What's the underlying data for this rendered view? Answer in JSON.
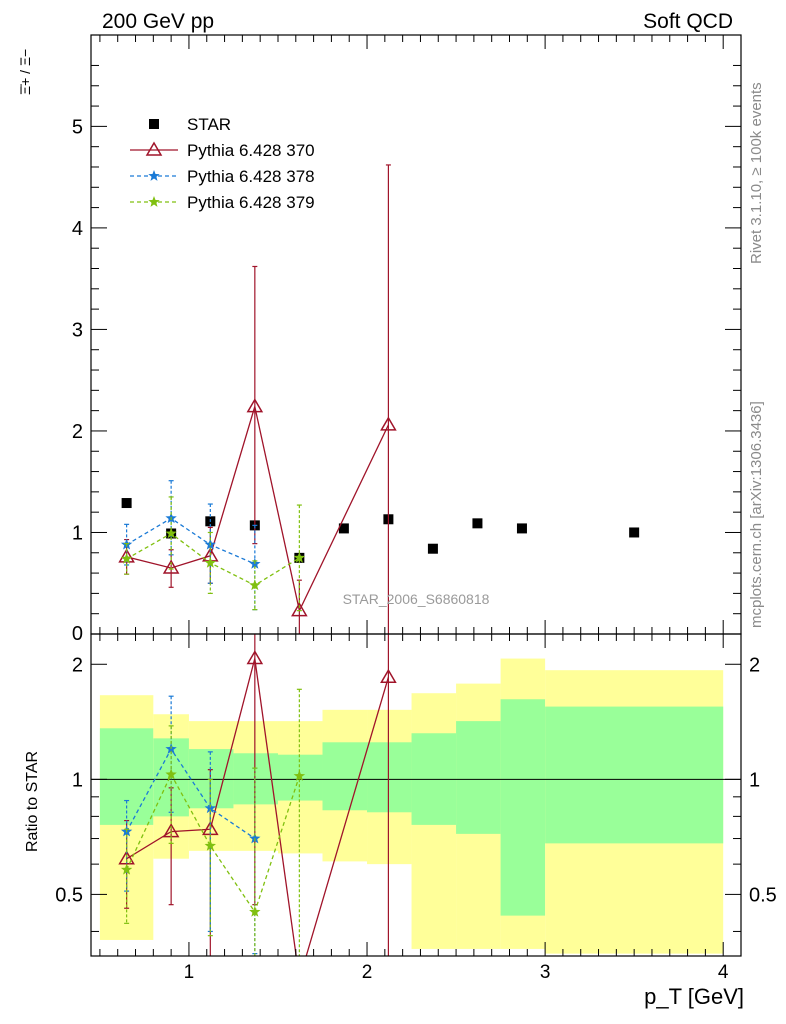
{
  "header": {
    "left": "200 GeV pp",
    "right": "Soft QCD"
  },
  "side_labels": {
    "rivet": "Rivet 3.1.10, ≥ 100k events",
    "mcplots": "mcplots.cern.ch [arXiv:1306.3436]"
  },
  "watermark": "STAR_2006_S6860818",
  "colors": {
    "star": "#000000",
    "py370": "#a0142a",
    "py378": "#1a7ad6",
    "py379": "#80c010",
    "band_inner": "#99ff99",
    "band_outer": "#ffff99"
  },
  "chart_data": [
    {
      "type": "scatter",
      "ylabel": "Ξ̄+ / Ξ−",
      "xlabel": "",
      "xlim": [
        0.45,
        4.1
      ],
      "ylim": [
        0,
        5.9
      ],
      "yticks": [
        1,
        2,
        3,
        4,
        5
      ],
      "ytick_labels": [
        "1",
        "2",
        "3",
        "4",
        "5"
      ],
      "bottom_tick_label": "0",
      "legend_position": "top-left",
      "series": [
        {
          "name": "STAR",
          "key": "star",
          "marker": "square",
          "x": [
            0.65,
            0.9,
            1.12,
            1.37,
            1.62,
            1.87,
            2.12,
            2.37,
            2.62,
            2.87,
            3.5
          ],
          "y": [
            1.29,
            0.99,
            1.11,
            1.07,
            0.75,
            1.04,
            1.13,
            0.84,
            1.09,
            1.04,
            1.0
          ]
        },
        {
          "name": "Pythia 6.428 370",
          "key": "py370",
          "marker": "triangle",
          "dash": "none",
          "x": [
            0.65,
            0.9,
            1.12,
            1.37,
            1.62,
            2.12
          ],
          "y": [
            0.76,
            0.65,
            0.77,
            2.24,
            0.23,
            2.06
          ],
          "err_low": [
            0.17,
            0.19,
            0.27,
            1.35,
            0.4,
            2.1
          ],
          "err_high": [
            0.17,
            0.18,
            0.28,
            1.38,
            0.3,
            2.56
          ]
        },
        {
          "name": "Pythia 6.428 378",
          "key": "py378",
          "marker": "star",
          "dash": "4,3",
          "x": [
            0.65,
            0.9,
            1.12,
            1.37
          ],
          "y": [
            0.88,
            1.14,
            0.88,
            0.69
          ],
          "err_low": [
            0.2,
            0.36,
            0.38,
            0.45
          ],
          "err_high": [
            0.2,
            0.37,
            0.4,
            0.38
          ]
        },
        {
          "name": "Pythia 6.428 379",
          "key": "py379",
          "marker": "star",
          "dash": "4,3",
          "x": [
            0.65,
            0.9,
            1.12,
            1.37,
            1.62
          ],
          "y": [
            0.74,
            0.99,
            0.7,
            0.48,
            0.75
          ],
          "err_low": [
            0.15,
            0.35,
            0.3,
            0.24,
            0.52
          ],
          "err_high": [
            0.15,
            0.36,
            0.3,
            0.24,
            0.52
          ]
        }
      ]
    },
    {
      "type": "line",
      "ylabel": "Ratio to STAR",
      "xlabel": "p_T [GeV]",
      "xlim": [
        0.45,
        4.1
      ],
      "ylim": [
        0.345,
        2.4
      ],
      "log_y": true,
      "yticks": [
        0.5,
        1,
        2
      ],
      "ytick_labels": [
        "0.5",
        "1",
        "2"
      ],
      "xticks": [
        1,
        2,
        3,
        4
      ],
      "xtick_labels": [
        "1",
        "2",
        "3",
        "4"
      ],
      "reference_line": 1,
      "bands": [
        {
          "x0": 0.5,
          "x1": 0.8,
          "inner": [
            0.76,
            1.36
          ],
          "outer": [
            0.38,
            1.66
          ]
        },
        {
          "x0": 0.8,
          "x1": 1.0,
          "inner": [
            0.8,
            1.28
          ],
          "outer": [
            0.62,
            1.48
          ]
        },
        {
          "x0": 1.0,
          "x1": 1.25,
          "inner": [
            0.84,
            1.2
          ],
          "outer": [
            0.65,
            1.42
          ]
        },
        {
          "x0": 1.25,
          "x1": 1.5,
          "inner": [
            0.86,
            1.17
          ],
          "outer": [
            0.65,
            1.42
          ]
        },
        {
          "x0": 1.5,
          "x1": 1.75,
          "inner": [
            0.88,
            1.16
          ],
          "outer": [
            0.64,
            1.42
          ]
        },
        {
          "x0": 1.75,
          "x1": 2.0,
          "inner": [
            0.83,
            1.25
          ],
          "outer": [
            0.61,
            1.52
          ]
        },
        {
          "x0": 2.0,
          "x1": 2.25,
          "inner": [
            0.82,
            1.25
          ],
          "outer": [
            0.6,
            1.52
          ]
        },
        {
          "x0": 2.25,
          "x1": 2.5,
          "inner": [
            0.76,
            1.32
          ],
          "outer": [
            0.36,
            1.68
          ]
        },
        {
          "x0": 2.5,
          "x1": 2.75,
          "inner": [
            0.72,
            1.42
          ],
          "outer": [
            0.36,
            1.78
          ]
        },
        {
          "x0": 2.75,
          "x1": 3.0,
          "inner": [
            0.44,
            1.62
          ],
          "outer": [
            0.36,
            2.07
          ]
        },
        {
          "x0": 3.0,
          "x1": 4.0,
          "inner": [
            0.68,
            1.55
          ],
          "outer": [
            0.35,
            1.93
          ]
        }
      ],
      "series": [
        {
          "name": "Pythia 6.428 370",
          "key": "py370",
          "marker": "triangle",
          "dash": "none",
          "x": [
            0.65,
            0.9,
            1.12,
            1.37,
            1.62,
            2.12
          ],
          "y": [
            0.62,
            0.73,
            0.74,
            2.07,
            0.3,
            1.85
          ],
          "err_low": [
            0.16,
            0.26,
            0.4,
            1.6,
            0.0,
            1.55
          ],
          "err_high": [
            0.16,
            0.22,
            0.32,
            0.4,
            0.0,
            0.6
          ]
        },
        {
          "name": "Pythia 6.428 378",
          "key": "py378",
          "marker": "star",
          "dash": "4,3",
          "x": [
            0.65,
            0.9,
            1.12,
            1.37
          ],
          "y": [
            0.73,
            1.2,
            0.84,
            0.7
          ],
          "err_low": [
            0.22,
            0.38,
            0.44,
            0.35
          ],
          "err_high": [
            0.15,
            0.45,
            0.34,
            0.37
          ]
        },
        {
          "name": "Pythia 6.428 379",
          "key": "py379",
          "marker": "star",
          "dash": "4,3",
          "x": [
            0.65,
            0.9,
            1.12,
            1.37,
            1.62
          ],
          "y": [
            0.58,
            1.03,
            0.67,
            0.45,
            1.02
          ],
          "err_low": [
            0.16,
            0.35,
            0.28,
            0.12,
            0.7
          ],
          "err_high": [
            0.16,
            0.35,
            0.33,
            0.62,
            0.7
          ]
        }
      ]
    }
  ]
}
